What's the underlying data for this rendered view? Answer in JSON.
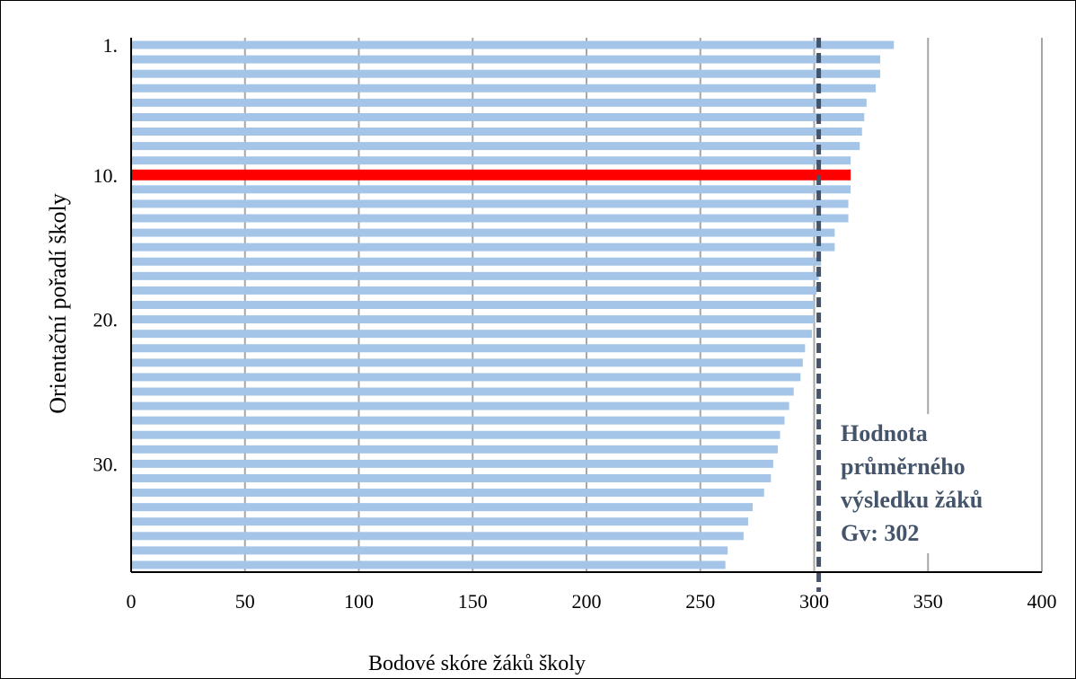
{
  "chart_data": {
    "type": "bar",
    "orientation": "horizontal",
    "xlabel": "Bodové skóre žáků školy",
    "ylabel": "Orientační pořadí školy",
    "xlim": [
      0,
      400
    ],
    "x_ticks": [
      "0",
      "50",
      "100",
      "150",
      "200",
      "250",
      "300",
      "350",
      "400"
    ],
    "x_tick_values": [
      0,
      50,
      100,
      150,
      200,
      250,
      300,
      350,
      400
    ],
    "y_tick_labels": [
      {
        "rank": 1,
        "label": "1."
      },
      {
        "rank": 10,
        "label": "10."
      },
      {
        "rank": 20,
        "label": "20."
      },
      {
        "rank": 30,
        "label": "30."
      }
    ],
    "grid": "vertical",
    "categories": [
      1,
      2,
      3,
      4,
      5,
      6,
      7,
      8,
      9,
      10,
      11,
      12,
      13,
      14,
      15,
      16,
      17,
      18,
      19,
      20,
      21,
      22,
      23,
      24,
      25,
      26,
      27,
      28,
      29,
      30,
      31,
      32,
      33,
      34,
      35,
      36,
      37
    ],
    "values": [
      335,
      329,
      329,
      327,
      323,
      322,
      321,
      320,
      316,
      316,
      316,
      315,
      315,
      309,
      309,
      303,
      302,
      301,
      300,
      300,
      299,
      296,
      295,
      294,
      291,
      289,
      287,
      285,
      284,
      282,
      281,
      278,
      273,
      271,
      269,
      262,
      261
    ],
    "highlight_rank": 10,
    "average": {
      "value": 302,
      "label_lines": [
        "Hodnota",
        "průměrného",
        "výsledku žáků",
        "Gv: 302"
      ]
    },
    "colors": {
      "bar": "#a4c5e7",
      "highlight": "#ff0000",
      "average_line": "#44546a",
      "grid": "#a6a6a6",
      "axis": "#000000"
    }
  }
}
